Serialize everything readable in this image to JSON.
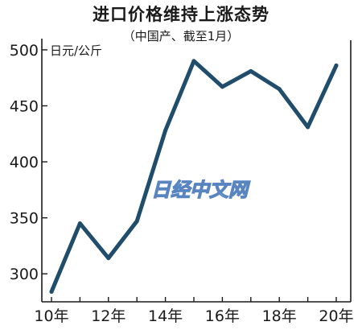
{
  "chart_data": {
    "type": "line",
    "title": "进口价格维持上涨态势",
    "subtitle": "（中国产、截至1月）",
    "ylabel": "日元/公斤",
    "xlabel": "",
    "x": [
      "10年",
      "11年",
      "12年",
      "13年",
      "14年",
      "15年",
      "16年",
      "17年",
      "18年",
      "19年",
      "20年"
    ],
    "values": [
      284,
      345,
      314,
      347,
      428,
      490,
      467,
      481,
      465,
      431,
      486
    ],
    "xticks": [
      "10年",
      "12年",
      "14年",
      "16年",
      "18年",
      "20年"
    ],
    "yticks": [
      300,
      350,
      400,
      450,
      500
    ],
    "ylim": [
      275,
      510
    ],
    "grid": false,
    "line_color": "#1f4d6b",
    "watermark": "日经中文网"
  }
}
